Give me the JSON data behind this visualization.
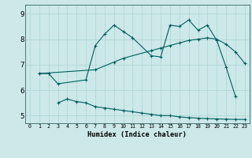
{
  "xlabel": "Humidex (Indice chaleur)",
  "bg_color": "#cce8e8",
  "line_color": "#005f5f",
  "grid_color": "#aad4d4",
  "spine_color": "#336666",
  "xlim": [
    -0.5,
    23.5
  ],
  "ylim": [
    4.7,
    9.35
  ],
  "xticks": [
    0,
    1,
    2,
    3,
    4,
    5,
    6,
    7,
    8,
    9,
    10,
    11,
    12,
    13,
    14,
    15,
    16,
    17,
    18,
    19,
    20,
    21,
    22,
    23
  ],
  "yticks": [
    5,
    6,
    7,
    8,
    9
  ],
  "line1_x": [
    1,
    2,
    3,
    6,
    7,
    8,
    9,
    10,
    11,
    13,
    14,
    15,
    16,
    17,
    18,
    19,
    20,
    21,
    22
  ],
  "line1_y": [
    6.65,
    6.65,
    6.25,
    6.4,
    7.75,
    8.2,
    8.55,
    8.3,
    8.05,
    7.35,
    7.3,
    8.55,
    8.5,
    8.75,
    8.35,
    8.55,
    7.95,
    6.9,
    5.75
  ],
  "line2_x": [
    3,
    4,
    5,
    6,
    7,
    8,
    9,
    10,
    11,
    12,
    13,
    14,
    15,
    16,
    17,
    18,
    19,
    20,
    21,
    22,
    23
  ],
  "line2_y": [
    5.5,
    5.65,
    5.55,
    5.5,
    5.35,
    5.3,
    5.25,
    5.2,
    5.15,
    5.1,
    5.05,
    5.0,
    5.0,
    4.95,
    4.92,
    4.9,
    4.88,
    4.87,
    4.86,
    4.85,
    4.85
  ],
  "line3_x": [
    1,
    7,
    9,
    10,
    13,
    14,
    15,
    16,
    17,
    18,
    19,
    20,
    21,
    22,
    23
  ],
  "line3_y": [
    6.65,
    6.8,
    7.1,
    7.25,
    7.55,
    7.65,
    7.75,
    7.85,
    7.95,
    8.0,
    8.05,
    8.0,
    7.8,
    7.5,
    7.05
  ]
}
